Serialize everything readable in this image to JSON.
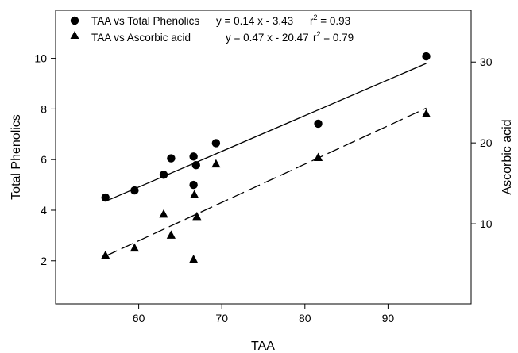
{
  "chart_data": {
    "type": "scatter",
    "xlabel": "TAA",
    "ylabel": "Total Phenolics",
    "y2label": "Ascorbic acid",
    "xlim": [
      50,
      100
    ],
    "ylim": [
      0.3,
      11.9
    ],
    "y2lim": [
      0.1,
      36.4
    ],
    "xticks": [
      60,
      70,
      80,
      90
    ],
    "yticks": [
      2,
      4,
      6,
      8,
      10
    ],
    "y2ticks": [
      10,
      20,
      30
    ],
    "grid": false,
    "legend_position": "top-left",
    "series": [
      {
        "name": "TAA vs Total Phenolics",
        "marker": "circle",
        "axis": "left",
        "points": [
          {
            "x": 56.0,
            "y": 4.5
          },
          {
            "x": 59.5,
            "y": 4.78
          },
          {
            "x": 63.0,
            "y": 5.4
          },
          {
            "x": 63.9,
            "y": 6.05
          },
          {
            "x": 66.6,
            "y": 6.12
          },
          {
            "x": 66.6,
            "y": 5.0
          },
          {
            "x": 66.9,
            "y": 5.78
          },
          {
            "x": 69.3,
            "y": 6.65
          },
          {
            "x": 81.6,
            "y": 7.42
          },
          {
            "x": 94.6,
            "y": 10.08
          }
        ],
        "fit": {
          "equation": "y = 0.14 x -  3.43",
          "r2_label": "r",
          "r2_sup": "2",
          "r2_value": " = 0.93",
          "x_range": [
            56.0,
            94.6
          ],
          "y_range": [
            4.35,
            9.8
          ],
          "style": "solid"
        }
      },
      {
        "name": "TAA vs Ascorbic acid",
        "marker": "triangle",
        "axis": "right",
        "points": [
          {
            "x": 56.0,
            "y": 6.1
          },
          {
            "x": 59.5,
            "y": 7.0
          },
          {
            "x": 63.0,
            "y": 11.2
          },
          {
            "x": 63.9,
            "y": 8.6
          },
          {
            "x": 66.6,
            "y": 5.6
          },
          {
            "x": 66.7,
            "y": 13.6
          },
          {
            "x": 67.0,
            "y": 10.9
          },
          {
            "x": 69.3,
            "y": 17.4
          },
          {
            "x": 81.6,
            "y": 18.2
          },
          {
            "x": 94.6,
            "y": 23.6
          }
        ],
        "fit": {
          "equation": "y = 0.47 x - 20.47",
          "r2_label": "r",
          "r2_sup": "2",
          "r2_value": " = 0.79",
          "x_range": [
            56.0,
            94.6
          ],
          "y_range": [
            6.0,
            24.3
          ],
          "style": "dashed"
        }
      }
    ]
  }
}
